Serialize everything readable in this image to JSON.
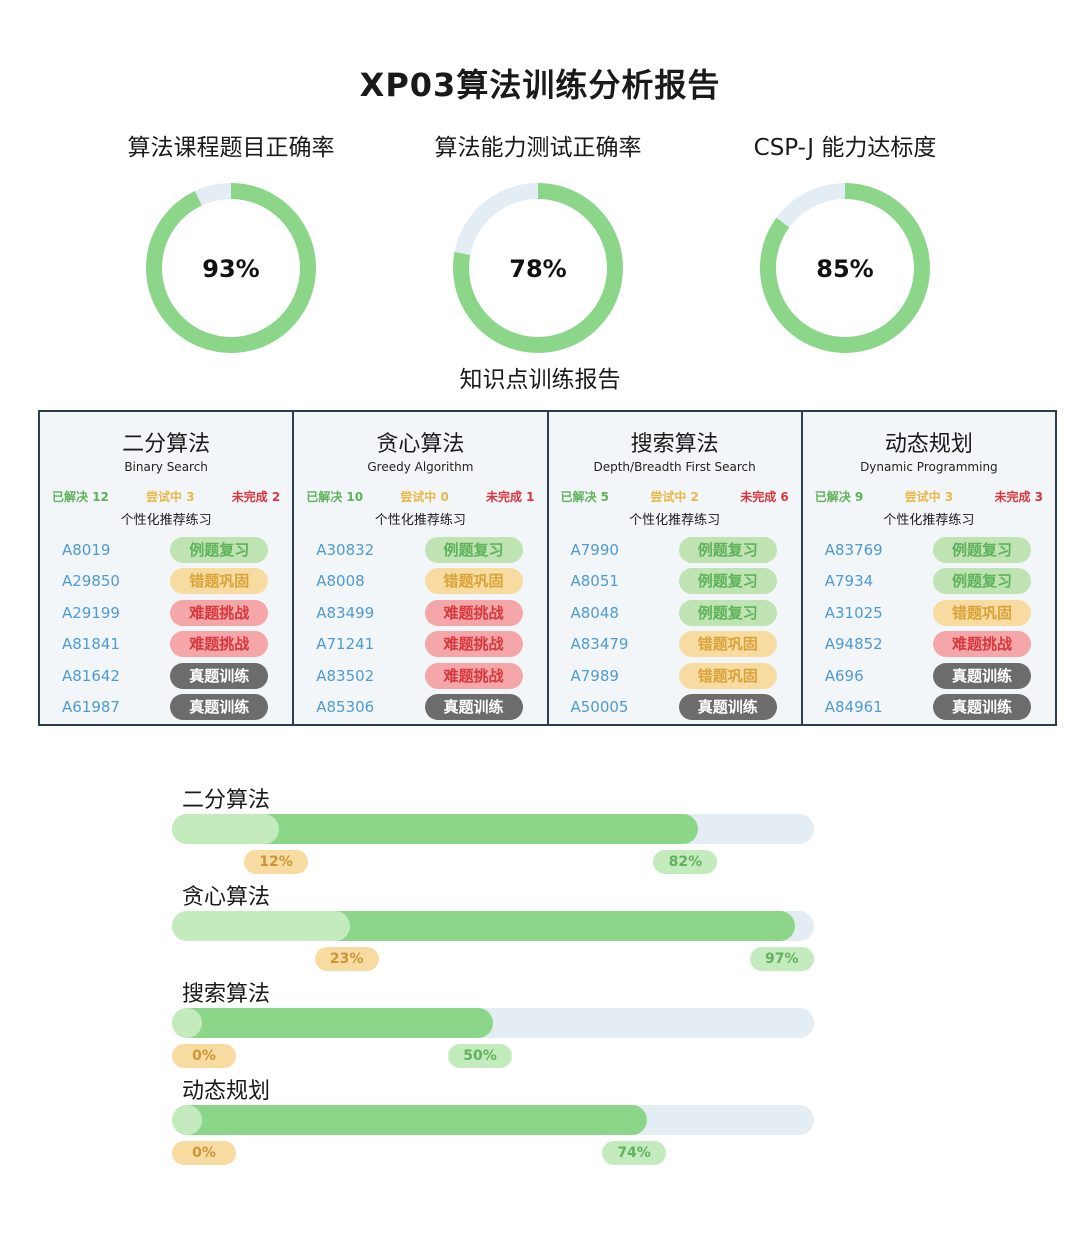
{
  "title": "XP03算法训练分析报告",
  "gauges": [
    {
      "label": "算法课程题目正确率",
      "value": 93,
      "text": "93%"
    },
    {
      "label": "算法能力测试正确率",
      "value": 78,
      "text": "78%"
    },
    {
      "label": "CSP-J 能力达标度",
      "value": 85,
      "text": "85%"
    }
  ],
  "colors": {
    "ring": "#8cd68a",
    "ring_track": "#e4ecf4",
    "solved": "#5fb35c",
    "trying": "#e8b84a",
    "unfinished": "#d9363e"
  },
  "section_title": "知识点训练报告",
  "knowledge_points": [
    {
      "name": "二分算法",
      "en": "Binary Search",
      "solved": "已解决 12",
      "trying": "尝试中 3",
      "unfinished": "未完成 2",
      "rec_label": "个性化推荐练习",
      "problems": [
        {
          "id": "A8019",
          "tag": "例题复习",
          "type": "review"
        },
        {
          "id": "A29850",
          "tag": "错题巩固",
          "type": "consolidate"
        },
        {
          "id": "A29199",
          "tag": "难题挑战",
          "type": "challenge"
        },
        {
          "id": "A81841",
          "tag": "难题挑战",
          "type": "challenge"
        },
        {
          "id": "A81642",
          "tag": "真题训练",
          "type": "exam"
        },
        {
          "id": "A61987",
          "tag": "真题训练",
          "type": "exam"
        }
      ]
    },
    {
      "name": "贪心算法",
      "en": "Greedy Algorithm",
      "solved": "已解决 10",
      "trying": "尝试中 0",
      "unfinished": "未完成 1",
      "rec_label": "个性化推荐练习",
      "problems": [
        {
          "id": "A30832",
          "tag": "例题复习",
          "type": "review"
        },
        {
          "id": "A8008",
          "tag": "错题巩固",
          "type": "consolidate"
        },
        {
          "id": "A83499",
          "tag": "难题挑战",
          "type": "challenge"
        },
        {
          "id": "A71241",
          "tag": "难题挑战",
          "type": "challenge"
        },
        {
          "id": "A83502",
          "tag": "难题挑战",
          "type": "challenge"
        },
        {
          "id": "A85306",
          "tag": "真题训练",
          "type": "exam"
        }
      ]
    },
    {
      "name": "搜索算法",
      "en": "Depth/Breadth First Search",
      "solved": "已解决 5",
      "trying": "尝试中 2",
      "unfinished": "未完成 6",
      "rec_label": "个性化推荐练习",
      "problems": [
        {
          "id": "A7990",
          "tag": "例题复习",
          "type": "review"
        },
        {
          "id": "A8051",
          "tag": "例题复习",
          "type": "review"
        },
        {
          "id": "A8048",
          "tag": "例题复习",
          "type": "review"
        },
        {
          "id": "A83479",
          "tag": "错题巩固",
          "type": "consolidate"
        },
        {
          "id": "A7989",
          "tag": "错题巩固",
          "type": "consolidate"
        },
        {
          "id": "A50005",
          "tag": "真题训练",
          "type": "exam"
        }
      ]
    },
    {
      "name": "动态规划",
      "en": "Dynamic Programming",
      "solved": "已解决 9",
      "trying": "尝试中 3",
      "unfinished": "未完成 3",
      "rec_label": "个性化推荐练习",
      "problems": [
        {
          "id": "A83769",
          "tag": "例题复习",
          "type": "review"
        },
        {
          "id": "A7934",
          "tag": "例题复习",
          "type": "review"
        },
        {
          "id": "A31025",
          "tag": "错题巩固",
          "type": "consolidate"
        },
        {
          "id": "A94852",
          "tag": "难题挑战",
          "type": "challenge"
        },
        {
          "id": "A696",
          "tag": "真题训练",
          "type": "exam"
        },
        {
          "id": "A84961",
          "tag": "真题训练",
          "type": "exam"
        }
      ]
    }
  ],
  "progress_bars": [
    {
      "name": "二分算法",
      "trying": 12,
      "trying_text": "12%",
      "solved": 82,
      "solved_text": "82%"
    },
    {
      "name": "贪心算法",
      "trying": 23,
      "trying_text": "23%",
      "solved": 97,
      "solved_text": "97%"
    },
    {
      "name": "搜索算法",
      "trying": 0,
      "trying_text": "0%",
      "solved": 50,
      "solved_text": "50%"
    },
    {
      "name": "动态规划",
      "trying": 0,
      "trying_text": "0%",
      "solved": 74,
      "solved_text": "74%"
    }
  ]
}
